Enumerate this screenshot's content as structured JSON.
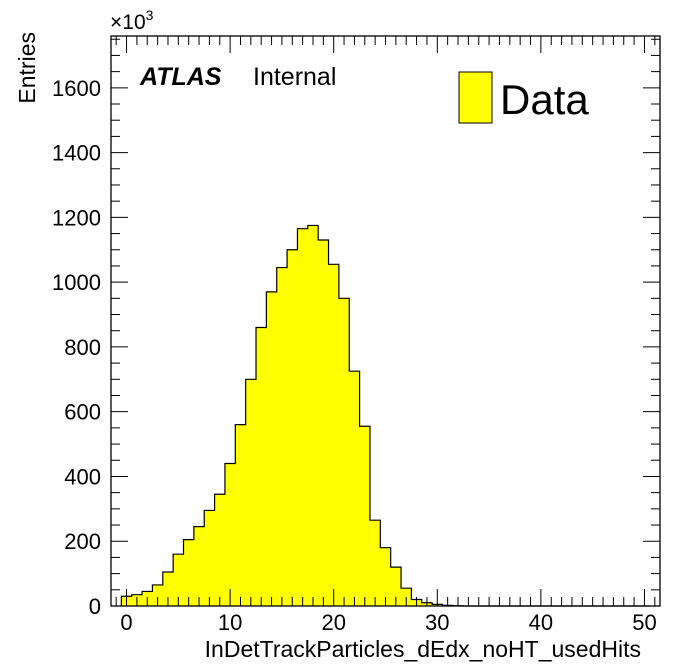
{
  "chart_data": {
    "type": "bar",
    "xlabel": "InDetTrackParticles_dEdx_noHT_usedHits",
    "ylabel": "Entries",
    "xlim": [
      -1.5,
      51.5
    ],
    "ylim": [
      0,
      1760
    ],
    "x_ticks": [
      0,
      10,
      20,
      30,
      40,
      50
    ],
    "y_ticks": [
      0,
      200,
      400,
      600,
      800,
      1000,
      1200,
      1400,
      1600
    ],
    "y_multiplier": {
      "base": "×10",
      "exponent": "3"
    },
    "bin_width": 1,
    "bins_start": -0.5,
    "series": [
      {
        "name": "Data",
        "color": "#ffff00",
        "edge_color": "#000000",
        "values": [
          30,
          35,
          45,
          65,
          105,
          160,
          205,
          245,
          295,
          345,
          440,
          560,
          700,
          860,
          970,
          1045,
          1100,
          1165,
          1175,
          1130,
          1055,
          950,
          725,
          555,
          265,
          180,
          120,
          55,
          20,
          10,
          5,
          2,
          1,
          0,
          0,
          0,
          0,
          0,
          0,
          0,
          0,
          0,
          0,
          0,
          0,
          0,
          0,
          0,
          0,
          0,
          0
        ]
      }
    ],
    "legend": {
      "placement": "top-right",
      "entries": [
        "Data"
      ]
    },
    "annotations": {
      "atlas": "ATLAS",
      "label": "Internal"
    },
    "grid": false
  }
}
